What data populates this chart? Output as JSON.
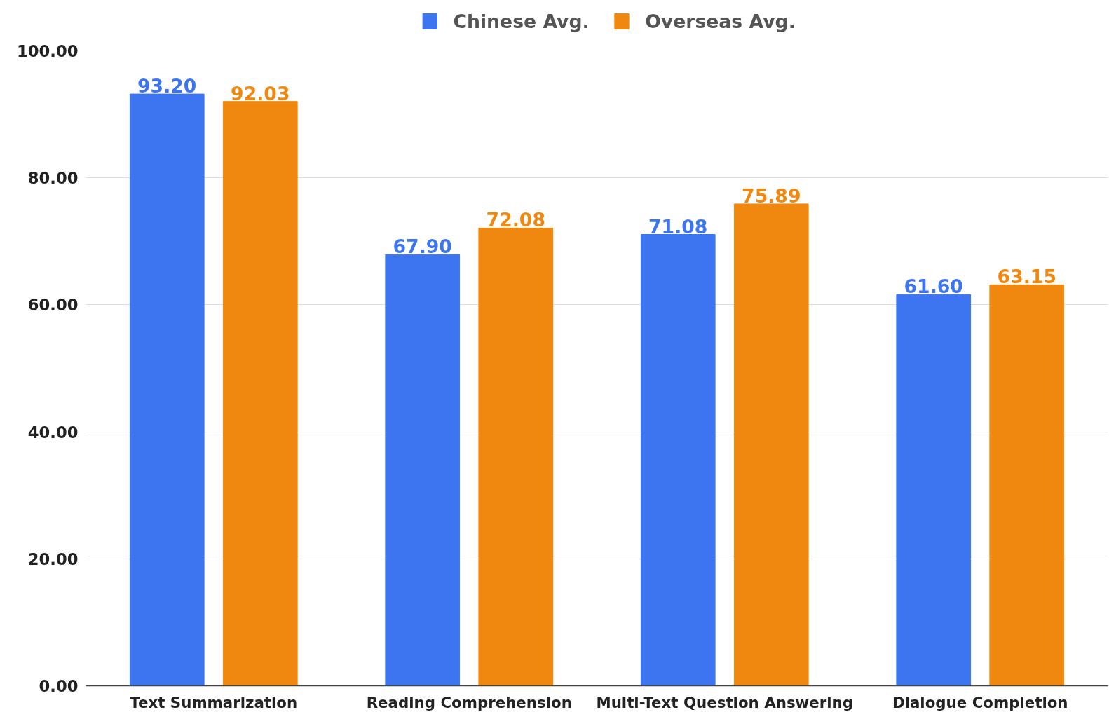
{
  "chart_data": {
    "type": "bar",
    "categories": [
      "Text Summarization",
      "Reading Comprehension",
      "Multi-Text Question Answering",
      "Dialogue Completion"
    ],
    "series": [
      {
        "name": "Chinese Avg.",
        "color": "#3d75f0",
        "values": [
          93.2,
          67.9,
          71.08,
          61.6
        ],
        "value_labels": [
          "93.20",
          "67.90",
          "71.08",
          "61.60"
        ]
      },
      {
        "name": "Overseas Avg.",
        "color": "#f0880f",
        "values": [
          92.03,
          72.08,
          75.89,
          63.15
        ],
        "value_labels": [
          "92.03",
          "72.08",
          "75.89",
          "63.15"
        ]
      }
    ],
    "ylim": [
      0,
      100
    ],
    "yticks": [
      {
        "value": 0,
        "label": "0.00"
      },
      {
        "value": 20,
        "label": "20.00"
      },
      {
        "value": 40,
        "label": "40.00"
      },
      {
        "value": 60,
        "label": "60.00"
      },
      {
        "value": 80,
        "label": "80.00"
      },
      {
        "value": 100,
        "label": "100.00"
      }
    ],
    "grid": "y",
    "legend": "top"
  }
}
